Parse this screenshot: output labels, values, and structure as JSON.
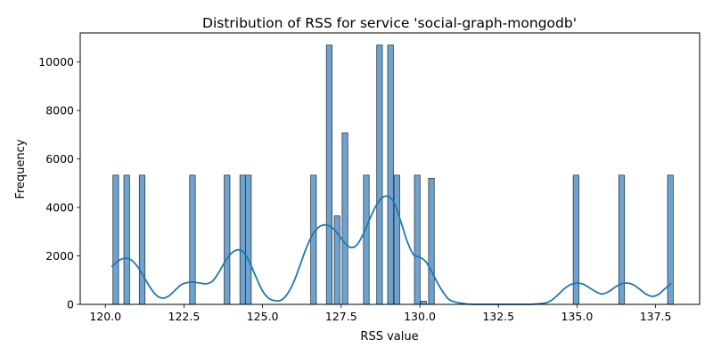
{
  "chart_data": {
    "type": "histogram",
    "title": "Distribution of RSS for service 'social-graph-mongodb'",
    "xlabel": "RSS value",
    "ylabel": "Frequency",
    "xlim": [
      119.2,
      138.9
    ],
    "ylim": [
      0,
      11200
    ],
    "xticks": [
      120.0,
      122.5,
      125.0,
      127.5,
      130.0,
      132.5,
      135.0,
      137.5
    ],
    "xtick_labels": [
      "120.0",
      "122.5",
      "125.0",
      "127.5",
      "130.0",
      "132.5",
      "135.0",
      "137.5"
    ],
    "yticks": [
      0,
      2000,
      4000,
      6000,
      8000,
      10000
    ],
    "ytick_labels": [
      "0",
      "2000",
      "4000",
      "6000",
      "8000",
      "10000"
    ],
    "bar_color": "#6fa3cf",
    "bar_edge_color": "#2d3a45",
    "kde_color": "#1f77b4",
    "bin_width": 0.18,
    "bars": [
      {
        "x": 120.33,
        "count": 5330
      },
      {
        "x": 120.68,
        "count": 5330
      },
      {
        "x": 121.17,
        "count": 5330
      },
      {
        "x": 122.77,
        "count": 5330
      },
      {
        "x": 123.87,
        "count": 5330
      },
      {
        "x": 124.37,
        "count": 5330
      },
      {
        "x": 124.55,
        "count": 5330
      },
      {
        "x": 126.62,
        "count": 5330
      },
      {
        "x": 127.12,
        "count": 10700
      },
      {
        "x": 127.37,
        "count": 3650
      },
      {
        "x": 127.62,
        "count": 7080
      },
      {
        "x": 128.3,
        "count": 5330
      },
      {
        "x": 128.72,
        "count": 10700
      },
      {
        "x": 129.07,
        "count": 10700
      },
      {
        "x": 129.27,
        "count": 5330
      },
      {
        "x": 129.92,
        "count": 5330
      },
      {
        "x": 130.12,
        "count": 130
      },
      {
        "x": 130.37,
        "count": 5200
      },
      {
        "x": 134.97,
        "count": 5330
      },
      {
        "x": 136.42,
        "count": 5330
      },
      {
        "x": 137.97,
        "count": 5330
      }
    ],
    "kde": {
      "x": [
        120.2,
        120.4,
        120.6,
        120.8,
        121.0,
        121.2,
        121.4,
        121.6,
        121.8,
        122.0,
        122.2,
        122.4,
        122.6,
        122.8,
        123.0,
        123.2,
        123.4,
        123.6,
        123.8,
        124.0,
        124.2,
        124.4,
        124.6,
        124.8,
        125.0,
        125.2,
        125.4,
        125.6,
        125.8,
        126.0,
        126.2,
        126.4,
        126.6,
        126.8,
        127.0,
        127.2,
        127.4,
        127.6,
        127.8,
        128.0,
        128.2,
        128.4,
        128.6,
        128.8,
        129.0,
        129.2,
        129.4,
        129.6,
        129.8,
        130.0,
        130.2,
        130.4,
        130.6,
        130.8,
        131.0,
        131.5,
        132.0,
        132.5,
        133.0,
        133.5,
        134.0,
        134.2,
        134.4,
        134.6,
        134.8,
        135.0,
        135.2,
        135.4,
        135.6,
        135.8,
        136.0,
        136.2,
        136.4,
        136.6,
        136.8,
        137.0,
        137.2,
        137.4,
        137.6,
        137.8,
        138.0
      ],
      "y": [
        1550,
        1780,
        1900,
        1850,
        1600,
        1200,
        750,
        400,
        260,
        330,
        560,
        800,
        900,
        920,
        880,
        850,
        950,
        1300,
        1750,
        2100,
        2250,
        2150,
        1700,
        1100,
        550,
        250,
        150,
        180,
        450,
        950,
        1650,
        2350,
        2900,
        3200,
        3280,
        3180,
        2900,
        2550,
        2350,
        2450,
        2900,
        3500,
        4050,
        4400,
        4450,
        4150,
        3400,
        2600,
        2050,
        1950,
        1750,
        1300,
        800,
        400,
        150,
        15,
        0,
        0,
        0,
        0,
        60,
        180,
        400,
        650,
        820,
        880,
        830,
        680,
        520,
        430,
        520,
        700,
        840,
        880,
        800,
        620,
        420,
        330,
        420,
        650,
        860
      ]
    }
  }
}
